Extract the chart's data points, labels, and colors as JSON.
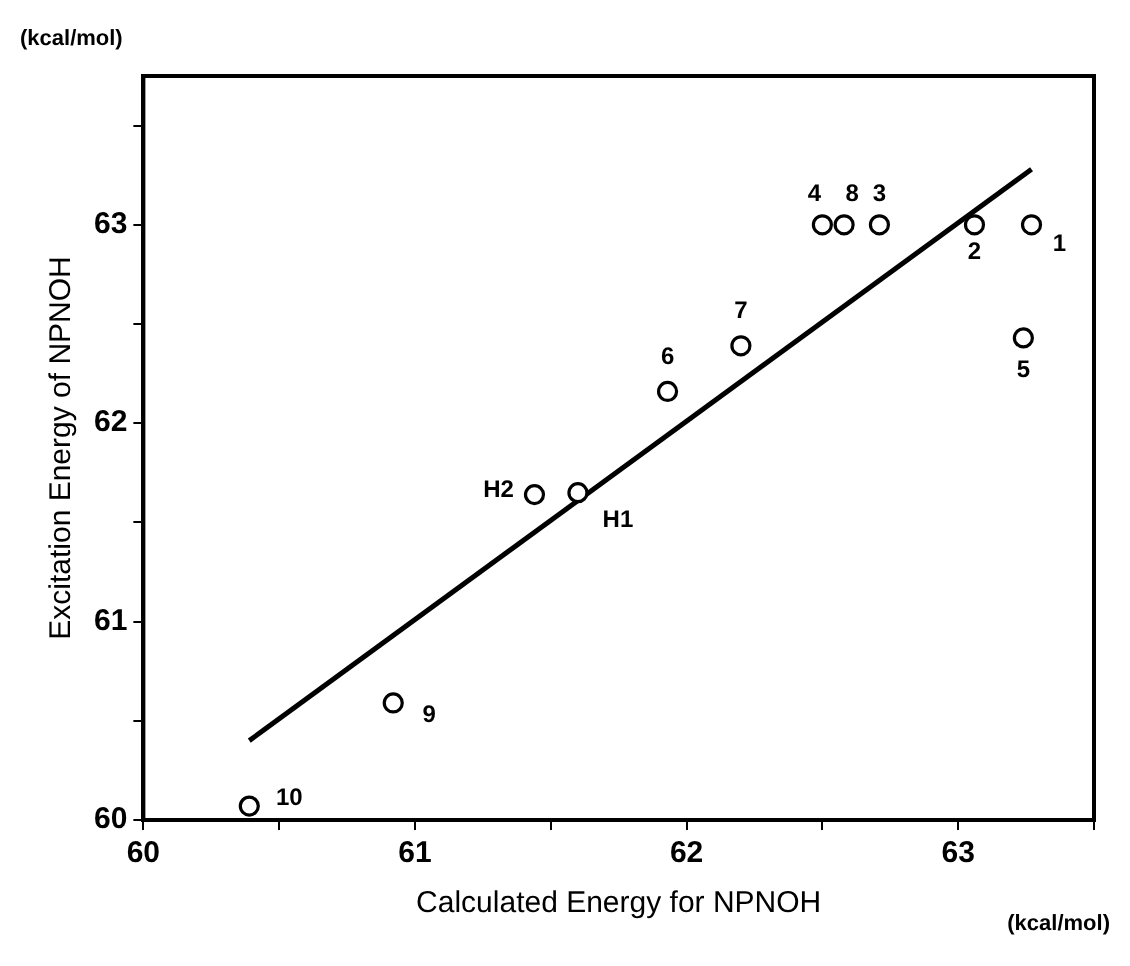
{
  "chart_data": {
    "type": "scatter",
    "xlabel": "Calculated Energy for NPNOH",
    "ylabel": "Excitation Energy of NPNOH",
    "xlim": [
      60,
      63.5
    ],
    "ylim": [
      60,
      63.75
    ],
    "xticks": [
      60,
      {
        "value": 60.5,
        "label": null
      },
      61,
      {
        "value": 61.5,
        "label": null
      },
      62,
      {
        "value": 62.5,
        "label": null
      },
      63,
      {
        "value": 63.5,
        "label": null
      }
    ],
    "yticks": [
      60,
      {
        "value": 60.5,
        "label": null
      },
      61,
      {
        "value": 61.5,
        "label": null
      },
      62,
      {
        "value": 62.5,
        "label": null
      },
      63,
      {
        "value": 63.5,
        "label": null
      }
    ],
    "marker": "circle",
    "series": [
      {
        "color": "#000000",
        "x": [
          63.27,
          63.06,
          62.71,
          62.5,
          63.24,
          61.93,
          62.2,
          62.58,
          60.92,
          60.39,
          61.6,
          61.44
        ],
        "values": [
          63.0,
          63.0,
          63.0,
          63.0,
          62.43,
          62.16,
          62.39,
          63.0,
          60.59,
          60.07,
          61.65,
          61.64
        ]
      },
      {
        "type": "line",
        "color": "#000000",
        "marker": "none",
        "line_style": "solid",
        "x": [
          60.39,
          63.27
        ],
        "values": [
          60.4,
          63.28
        ]
      }
    ],
    "annotations": [
      "(kcal/mol)",
      "(kcal/mol)",
      {
        "text": "1",
        "x": 63.27,
        "y": 63.0
      },
      {
        "text": "2",
        "x": 63.06,
        "y": 63.0
      },
      {
        "text": "3",
        "x": 62.71,
        "y": 63.0
      },
      {
        "text": "4",
        "x": 62.5,
        "y": 63.0
      },
      {
        "text": "5",
        "x": 63.24,
        "y": 62.43
      },
      {
        "text": "6",
        "x": 61.93,
        "y": 62.16
      },
      {
        "text": "7",
        "x": 62.2,
        "y": 62.39
      },
      {
        "text": "8",
        "x": 62.58,
        "y": 63.0
      },
      {
        "text": "9",
        "x": 60.92,
        "y": 60.59
      },
      {
        "text": "10",
        "x": 60.39,
        "y": 60.07
      },
      {
        "text": "H1",
        "x": 61.6,
        "y": 61.65
      },
      {
        "text": "H2",
        "x": 61.44,
        "y": 61.64
      }
    ]
  }
}
